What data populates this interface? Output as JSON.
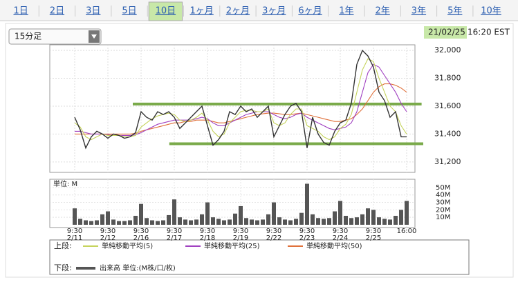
{
  "tabs": [
    "1日",
    "2日",
    "3日",
    "5日",
    "10日",
    "1ヶ月",
    "2ヶ月",
    "3ヶ月",
    "6ヶ月",
    "1年",
    "2年",
    "3年",
    "5年",
    "10年"
  ],
  "selected_tab_index": 4,
  "dropdown": "15分足",
  "timestamp": {
    "date": "21/02/25",
    "time": "16:20 EST"
  },
  "legend": {
    "upper": "上段:",
    "lower": "下段:"
  },
  "chart_data": [
    {
      "type": "line",
      "xlim": [
        -4.5,
        61.5
      ],
      "ylim": [
        31125,
        32040
      ],
      "yticks": [
        {
          "value": 31200,
          "label": "31,200"
        },
        {
          "value": 31400,
          "label": "31,400"
        },
        {
          "value": 31600,
          "label": "31,600"
        },
        {
          "value": 31800,
          "label": "31,800"
        },
        {
          "value": 32000,
          "label": "32,000"
        }
      ],
      "grid": true,
      "hlines": [
        {
          "value": 31615,
          "start": 10.5,
          "end": 62.7,
          "color": "#7aaa4a"
        },
        {
          "value": 31330,
          "start": 17.1,
          "end": 63,
          "color": "#7aaa4a"
        }
      ],
      "series": [
        {
          "color": "#333333",
          "values": [
            31520,
            31430,
            31300,
            31380,
            31420,
            31400,
            31370,
            31400,
            31390,
            31370,
            31380,
            31410,
            31560,
            31520,
            31500,
            31560,
            31540,
            31560,
            31520,
            31440,
            31480,
            31520,
            31560,
            31600,
            31460,
            31320,
            31360,
            31420,
            31560,
            31540,
            31600,
            31560,
            31580,
            31520,
            31560,
            31600,
            31380,
            31460,
            31540,
            31600,
            31620,
            31560,
            31300,
            31520,
            31400,
            31340,
            31320,
            31420,
            31480,
            31500,
            31620,
            31900,
            32000,
            31960,
            31880,
            31700,
            31640,
            31520,
            31560,
            31380,
            31380
          ]
        },
        {
          "name": "単純移動平均(5)",
          "color": "#c5d35b",
          "values": [
            31480,
            31450,
            31380,
            31360,
            31380,
            31400,
            31390,
            31390,
            31390,
            31380,
            31380,
            31390,
            31450,
            31480,
            31510,
            31530,
            31540,
            31550,
            31540,
            31500,
            31490,
            31500,
            31520,
            31550,
            31500,
            31420,
            31380,
            31400,
            31480,
            31520,
            31560,
            31570,
            31570,
            31560,
            31560,
            31580,
            31480,
            31460,
            31480,
            31540,
            31580,
            31580,
            31460,
            31440,
            31420,
            31380,
            31360,
            31380,
            31440,
            31470,
            31540,
            31700,
            31860,
            31940,
            31920,
            31800,
            31700,
            31600,
            31560,
            31460,
            31400
          ]
        },
        {
          "name": "単純移動平均(25)",
          "color": "#a040c0",
          "values": [
            31420,
            31420,
            31410,
            31400,
            31400,
            31400,
            31395,
            31390,
            31390,
            31390,
            31390,
            31395,
            31410,
            31430,
            31450,
            31470,
            31480,
            31490,
            31500,
            31500,
            31500,
            31500,
            31510,
            31520,
            31510,
            31480,
            31460,
            31460,
            31480,
            31500,
            31520,
            31540,
            31550,
            31560,
            31560,
            31560,
            31540,
            31520,
            31510,
            31520,
            31540,
            31550,
            31520,
            31500,
            31480,
            31460,
            31440,
            31430,
            31440,
            31450,
            31480,
            31560,
            31700,
            31840,
            31900,
            31880,
            31820,
            31760,
            31700,
            31620,
            31560
          ]
        },
        {
          "name": "単純移動平均(50)",
          "color": "#e0703a",
          "values": [
            31400,
            31400,
            31400,
            31400,
            31400,
            31400,
            31400,
            31400,
            31400,
            31400,
            31400,
            31405,
            31420,
            31430,
            31440,
            31450,
            31460,
            31470,
            31480,
            31480,
            31490,
            31490,
            31500,
            31500,
            31500,
            31490,
            31480,
            31480,
            31490,
            31500,
            31510,
            31520,
            31530,
            31540,
            31545,
            31550,
            31550,
            31545,
            31540,
            31540,
            31545,
            31550,
            31540,
            31530,
            31520,
            31510,
            31500,
            31490,
            31490,
            31500,
            31510,
            31540,
            31580,
            31640,
            31700,
            31740,
            31760,
            31760,
            31750,
            31730,
            31700
          ]
        }
      ]
    },
    {
      "type": "bar",
      "unit_label": "単位: M",
      "xlim": [
        -4.5,
        61.5
      ],
      "ylim": [
        0,
        61
      ],
      "yticks": [
        {
          "value": 10,
          "label": "10M"
        },
        {
          "value": 20,
          "label": "20M"
        },
        {
          "value": 30,
          "label": "30M"
        },
        {
          "value": 40,
          "label": "40M"
        },
        {
          "value": 50,
          "label": "50M"
        }
      ],
      "xticks": [
        {
          "value": 0,
          "label": "9:30"
        },
        {
          "value": 6,
          "label": "9:30"
        },
        {
          "value": 12,
          "label": "9:30"
        },
        {
          "value": 18,
          "label": "9:30"
        },
        {
          "value": 24,
          "label": "9:30"
        },
        {
          "value": 30,
          "label": "9:30"
        },
        {
          "value": 36,
          "label": "9:30"
        },
        {
          "value": 42,
          "label": "9:30"
        },
        {
          "value": 48,
          "label": "9:30"
        },
        {
          "value": 54,
          "label": "9:30"
        },
        {
          "value": 60,
          "label": "16:00"
        }
      ],
      "xtick_dates": [
        "2/11",
        "2/12",
        "2/16",
        "2/17",
        "2/18",
        "2/19",
        "2/22",
        "2/23",
        "2/24",
        "2/25",
        null
      ],
      "name": "出来高 単位:(M株/口/枚)",
      "color": "#555555",
      "values": [
        22,
        8,
        6,
        5,
        6,
        14,
        18,
        7,
        5,
        5,
        6,
        12,
        28,
        9,
        6,
        5,
        6,
        13,
        34,
        10,
        7,
        6,
        7,
        14,
        30,
        10,
        8,
        6,
        7,
        15,
        25,
        9,
        7,
        6,
        7,
        14,
        30,
        10,
        7,
        6,
        8,
        16,
        55,
        14,
        9,
        8,
        9,
        18,
        32,
        12,
        9,
        10,
        14,
        22,
        20,
        10,
        8,
        7,
        12,
        20,
        32
      ]
    }
  ]
}
